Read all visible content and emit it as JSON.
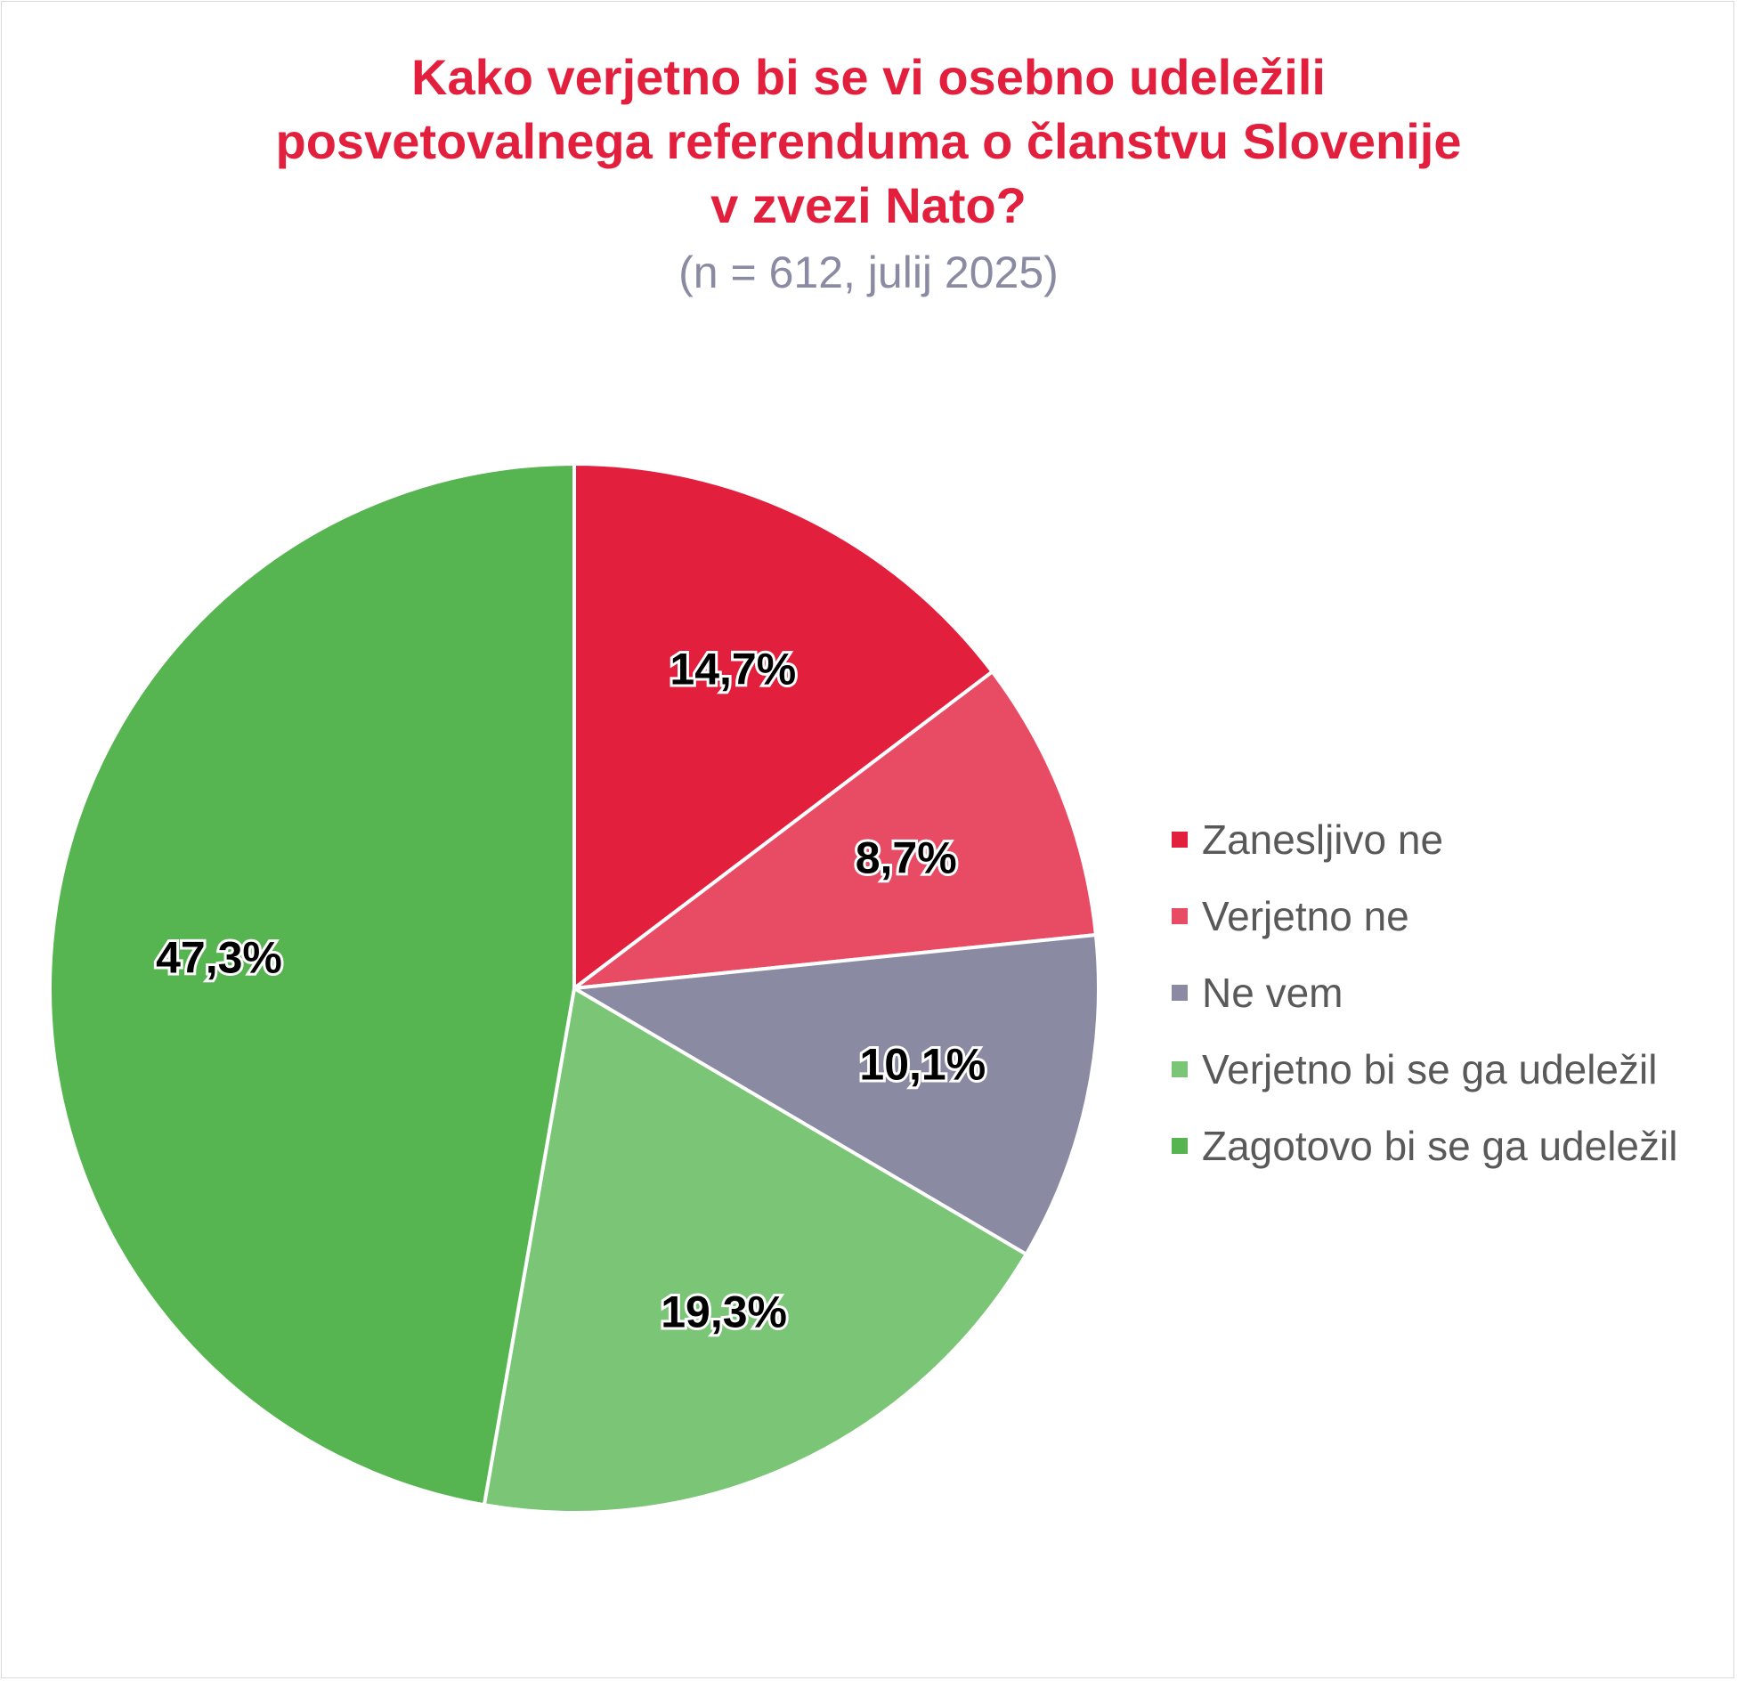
{
  "chart_data": {
    "type": "pie",
    "title_lines": [
      "Kako verjetno bi se vi osebno udeležili",
      "posvetovalnega referenduma o članstvu Slovenije",
      "v zvezi Nato?"
    ],
    "subtitle": "(n = 612, julij 2025)",
    "legend_position": "right",
    "slices": [
      {
        "category": "Zanesljivo ne",
        "value": 14.7,
        "label": "14,7%",
        "color": "#e31f3e"
      },
      {
        "category": "Verjetno ne",
        "value": 8.7,
        "label": "8,7%",
        "color": "#e84c65"
      },
      {
        "category": "Ne vem",
        "value": 10.1,
        "label": "10,1%",
        "color": "#8a8aa3"
      },
      {
        "category": "Verjetno bi se ga udeležil",
        "value": 19.3,
        "label": "19,3%",
        "color": "#7bc576"
      },
      {
        "category": "Zagotovo bi se ga udeležil",
        "value": 47.3,
        "label": "47,3%",
        "color": "#57b551"
      }
    ]
  }
}
